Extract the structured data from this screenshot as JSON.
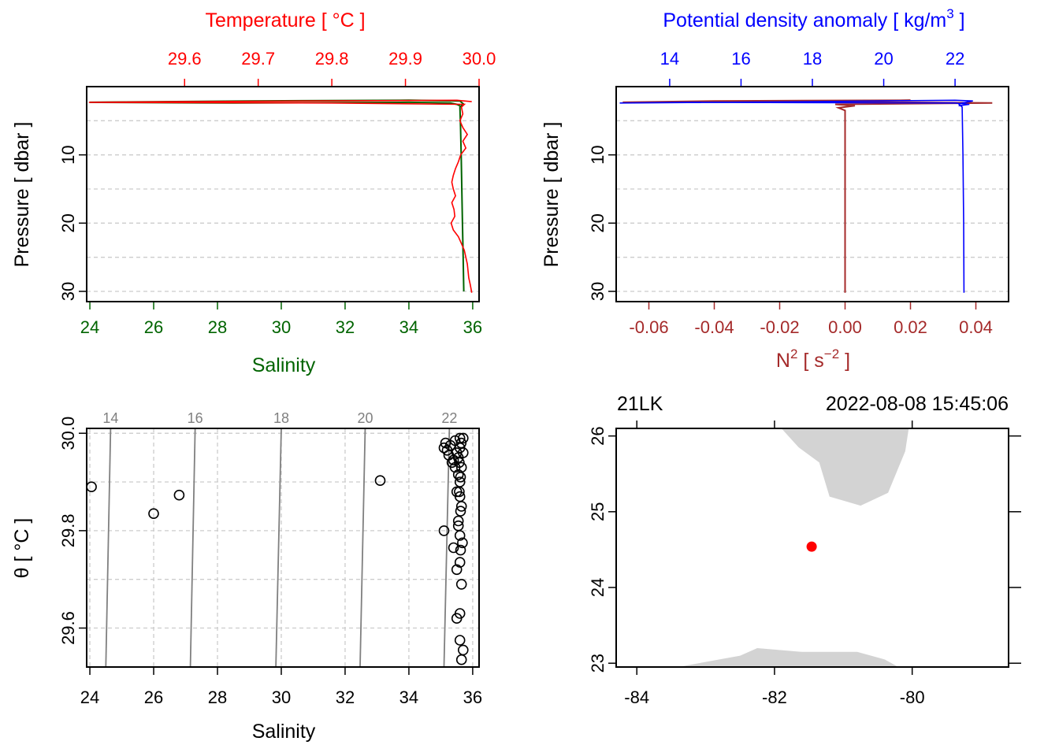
{
  "chart_data": [
    {
      "id": "ts_profile",
      "type": "line",
      "y_axis": {
        "label": "Pressure [ dbar ]",
        "range": [
          0,
          31.5
        ],
        "ticks": [
          10,
          20,
          30
        ],
        "gridlines": [
          5,
          10,
          15,
          20,
          25,
          30
        ],
        "reversed": true
      },
      "bottom_axis": {
        "label": "Salinity",
        "range": [
          23.9,
          36.2
        ],
        "ticks": [
          24,
          26,
          28,
          30,
          32,
          34,
          36
        ],
        "color": "#006400"
      },
      "top_axis": {
        "label": "Temperature [ °C ]",
        "range": [
          29.467,
          30.0
        ],
        "ticks": [
          "29.6",
          "29.7",
          "29.8",
          "29.9",
          "30.0"
        ],
        "color": "#ff0000"
      },
      "series": [
        {
          "name": "Salinity",
          "axis": "bottom",
          "color": "#006400",
          "points": [
            [
              35.6,
              2.8
            ],
            [
              35.5,
              2.6
            ],
            [
              35.3,
              2.4
            ],
            [
              34.0,
              2.3
            ],
            [
              28.5,
              2.4
            ],
            [
              24.0,
              2.3
            ],
            [
              29.0,
              2.1
            ],
            [
              34.0,
              2.0
            ],
            [
              35.6,
              2.1
            ],
            [
              35.7,
              2.5
            ],
            [
              35.6,
              3
            ],
            [
              35.62,
              6
            ],
            [
              35.64,
              10
            ],
            [
              35.66,
              15
            ],
            [
              35.68,
              20
            ],
            [
              35.7,
              25
            ],
            [
              35.72,
              30
            ]
          ]
        },
        {
          "name": "Temperature",
          "axis": "top",
          "color": "#ff0000",
          "points": [
            [
              29.99,
              2.2
            ],
            [
              29.97,
              2.0
            ],
            [
              29.6,
              2.2
            ],
            [
              29.47,
              2.3
            ],
            [
              29.8,
              2.4
            ],
            [
              29.98,
              2.6
            ],
            [
              29.976,
              3
            ],
            [
              29.978,
              4
            ],
            [
              29.974,
              5
            ],
            [
              29.978,
              6
            ],
            [
              29.984,
              7
            ],
            [
              29.978,
              8
            ],
            [
              29.982,
              9
            ],
            [
              29.975,
              10
            ],
            [
              29.972,
              11
            ],
            [
              29.968,
              12
            ],
            [
              29.965,
              13
            ],
            [
              29.963,
              14
            ],
            [
              29.965,
              15
            ],
            [
              29.968,
              16
            ],
            [
              29.963,
              17
            ],
            [
              29.966,
              18
            ],
            [
              29.967,
              19
            ],
            [
              29.962,
              20
            ],
            [
              29.965,
              21
            ],
            [
              29.972,
              22
            ],
            [
              29.976,
              23
            ],
            [
              29.98,
              24
            ],
            [
              29.982,
              25
            ],
            [
              29.984,
              26
            ],
            [
              29.985,
              27
            ],
            [
              29.986,
              28
            ],
            [
              29.988,
              29
            ],
            [
              29.99,
              30.2
            ]
          ]
        }
      ]
    },
    {
      "id": "density_profile",
      "type": "line",
      "y_axis": {
        "label": "Pressure [ dbar ]",
        "range": [
          0,
          31.5
        ],
        "ticks": [
          10,
          20,
          30
        ],
        "gridlines": [
          5,
          10,
          15,
          20,
          25,
          30
        ],
        "reversed": true
      },
      "bottom_axis": {
        "label": "N² [ s⁻² ]",
        "label_parts": [
          "N",
          "2",
          " [ s",
          "−2",
          " ]"
        ],
        "range": [
          -0.07,
          0.05
        ],
        "ticks": [
          "-0.06",
          "-0.04",
          "-0.02",
          "0.00",
          "0.02",
          "0.04"
        ],
        "tick_values": [
          -0.06,
          -0.04,
          -0.02,
          0.0,
          0.02,
          0.04
        ],
        "color": "#a52a2a"
      },
      "top_axis": {
        "label": "Potential density anomaly [ kg/m³ ]",
        "label_parts": [
          "Potential density anomaly [ kg/m",
          "3",
          " ]"
        ],
        "range": [
          12.5,
          23.5
        ],
        "ticks": [
          14,
          16,
          18,
          20,
          22
        ],
        "color": "#0000ff"
      },
      "series": [
        {
          "name": "Potential density anomaly",
          "axis": "top",
          "color": "#0000ff",
          "points": [
            [
              22.1,
              2.8
            ],
            [
              22.4,
              2.6
            ],
            [
              22.0,
              2.4
            ],
            [
              14.5,
              2.3
            ],
            [
              12.6,
              2.4
            ],
            [
              18.0,
              2.2
            ],
            [
              22.0,
              2.0
            ],
            [
              22.5,
              2.1
            ],
            [
              22.1,
              2.5
            ],
            [
              22.2,
              3
            ],
            [
              22.22,
              10
            ],
            [
              22.24,
              20
            ],
            [
              22.25,
              30.2
            ]
          ]
        },
        {
          "name": "N2",
          "axis": "bottom",
          "color": "#a52a2a",
          "points": [
            [
              0.0,
              2.1
            ],
            [
              0.02,
              2.0
            ],
            [
              -0.04,
              2.1
            ],
            [
              -0.068,
              2.3
            ],
            [
              -0.01,
              2.2
            ],
            [
              0.045,
              2.4
            ],
            [
              -0.003,
              2.6
            ],
            [
              0.003,
              2.8
            ],
            [
              -0.002,
              3.1
            ],
            [
              0.0,
              3.5
            ],
            [
              0.0,
              30.2
            ]
          ]
        }
      ]
    },
    {
      "id": "ts_diagram",
      "type": "scatter",
      "x_axis": {
        "label": "Salinity",
        "range": [
          23.9,
          36.2
        ],
        "ticks": [
          24,
          26,
          28,
          30,
          32,
          34,
          36
        ]
      },
      "y_axis": {
        "label": "θ [ °C ]",
        "range": [
          29.52,
          30.01
        ],
        "ticks": [
          "29.6",
          "29.8",
          "30.0"
        ],
        "tick_values": [
          29.6,
          29.8,
          30.0
        ],
        "gridlines": [
          29.6,
          29.7,
          29.8,
          29.9,
          30.0
        ]
      },
      "isopycnals": [
        {
          "label": "14",
          "s_bottom": 24.5,
          "s_top": 24.65
        },
        {
          "label": "16",
          "s_bottom": 27.15,
          "s_top": 27.3
        },
        {
          "label": "18",
          "s_bottom": 29.83,
          "s_top": 30.0
        },
        {
          "label": "20",
          "s_bottom": 32.47,
          "s_top": 32.63
        },
        {
          "label": "22",
          "s_bottom": 35.1,
          "s_top": 35.27
        }
      ],
      "points": [
        [
          24.05,
          29.89
        ],
        [
          26.0,
          29.835
        ],
        [
          26.8,
          29.873
        ],
        [
          33.1,
          29.903
        ],
        [
          35.1,
          29.8
        ],
        [
          35.4,
          29.765
        ],
        [
          35.6,
          29.735
        ],
        [
          35.65,
          29.69
        ],
        [
          35.6,
          29.63
        ],
        [
          35.5,
          29.62
        ],
        [
          35.6,
          29.575
        ],
        [
          35.7,
          29.555
        ],
        [
          35.65,
          29.535
        ],
        [
          35.6,
          29.79
        ],
        [
          35.55,
          29.82
        ],
        [
          35.65,
          29.85
        ],
        [
          35.6,
          29.87
        ],
        [
          35.5,
          29.88
        ],
        [
          35.6,
          29.9
        ],
        [
          35.55,
          29.915
        ],
        [
          35.65,
          29.93
        ],
        [
          35.4,
          29.945
        ],
        [
          35.5,
          29.96
        ],
        [
          35.6,
          29.97
        ],
        [
          35.3,
          29.975
        ],
        [
          35.2,
          29.965
        ],
        [
          35.1,
          29.97
        ],
        [
          35.45,
          29.985
        ],
        [
          35.6,
          29.99
        ],
        [
          35.7,
          29.99
        ],
        [
          35.55,
          29.95
        ],
        [
          35.62,
          29.91
        ],
        [
          35.58,
          29.88
        ],
        [
          35.62,
          29.84
        ],
        [
          35.55,
          29.81
        ],
        [
          35.68,
          29.775
        ],
        [
          35.25,
          29.955
        ],
        [
          35.35,
          29.94
        ],
        [
          35.15,
          29.98
        ],
        [
          35.5,
          29.72
        ],
        [
          35.62,
          29.76
        ],
        [
          35.58,
          29.94
        ],
        [
          35.7,
          29.96
        ],
        [
          35.45,
          29.93
        ],
        [
          35.64,
          29.98
        ]
      ]
    },
    {
      "id": "station_map",
      "type": "map",
      "station": "21LK",
      "datetime": "2022-08-08 15:45:06",
      "x_axis": {
        "range": [
          -84.3,
          -78.6
        ],
        "ticks": [
          "-84",
          "-82",
          "-80"
        ],
        "tick_values": [
          -84,
          -82,
          -80
        ]
      },
      "y_axis": {
        "range": [
          22.95,
          26.1
        ],
        "ticks": [
          "23",
          "24",
          "25",
          "26"
        ],
        "tick_values": [
          23,
          24,
          25,
          26
        ]
      },
      "station_location": {
        "lon": -81.46,
        "lat": 24.54,
        "color": "#ff0000"
      },
      "land_color": "#d3d3d3",
      "land": [
        [
          [
            -81.9,
            26.1
          ],
          [
            -81.65,
            25.85
          ],
          [
            -81.35,
            25.65
          ],
          [
            -81.2,
            25.2
          ],
          [
            -80.75,
            25.08
          ],
          [
            -80.35,
            25.25
          ],
          [
            -80.1,
            25.8
          ],
          [
            -80.05,
            26.1
          ]
        ],
        [
          [
            -83.4,
            22.95
          ],
          [
            -82.5,
            23.1
          ],
          [
            -82.25,
            23.2
          ],
          [
            -81.6,
            23.15
          ],
          [
            -80.8,
            23.15
          ],
          [
            -80.4,
            23.05
          ],
          [
            -80.2,
            22.95
          ]
        ]
      ]
    }
  ]
}
